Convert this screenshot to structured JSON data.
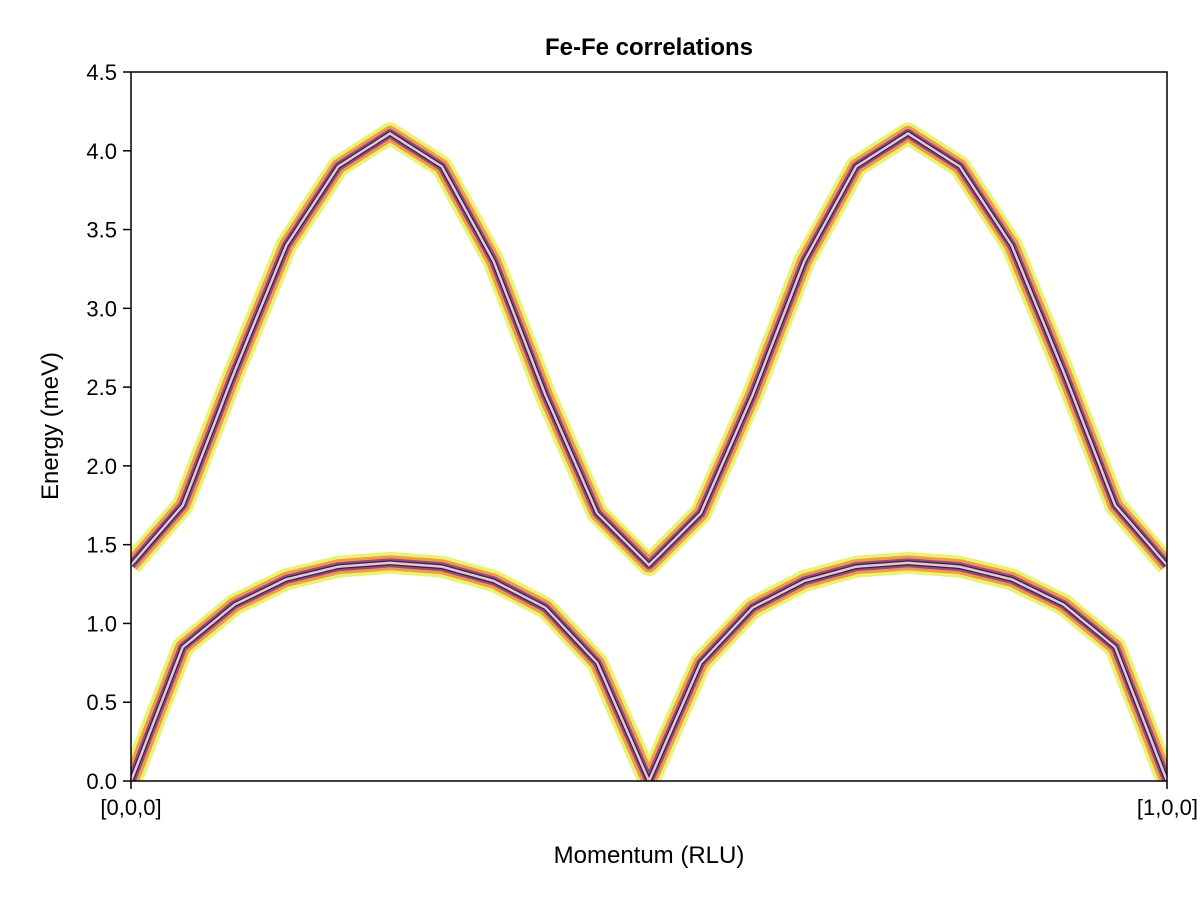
{
  "chart_data": {
    "type": "heatmap",
    "title": "Fe-Fe correlations",
    "xlabel": "Momentum (RLU)",
    "ylabel": "Energy (meV)",
    "xlim": [
      0,
      1
    ],
    "ylim": [
      0,
      4.5
    ],
    "x_ticks": [
      {
        "value": 0,
        "label": "[0,0,0]"
      },
      {
        "value": 1,
        "label": "[1,0,0]"
      }
    ],
    "y_ticks": [
      {
        "value": 0.0,
        "label": "0.0"
      },
      {
        "value": 0.5,
        "label": "0.5"
      },
      {
        "value": 1.0,
        "label": "1.0"
      },
      {
        "value": 1.5,
        "label": "1.5"
      },
      {
        "value": 2.0,
        "label": "2.0"
      },
      {
        "value": 2.5,
        "label": "2.5"
      },
      {
        "value": 3.0,
        "label": "3.0"
      },
      {
        "value": 3.5,
        "label": "3.5"
      },
      {
        "value": 4.0,
        "label": "4.0"
      },
      {
        "value": 4.5,
        "label": "4.5"
      }
    ],
    "grid": false,
    "colors": {
      "line": "#f7bdd0",
      "intensity_high": "#0d2a3a",
      "intensity_mid": "#8a3a8f",
      "intensity_low": "#f28c3c",
      "intensity_edge": "#e6f05a"
    },
    "series": [
      {
        "x": [
          0.0,
          0.05,
          0.1,
          0.15,
          0.2,
          0.25,
          0.3,
          0.35,
          0.4,
          0.45,
          0.5,
          0.55,
          0.6,
          0.65,
          0.7,
          0.75,
          0.8,
          0.85,
          0.9,
          0.95,
          1.0
        ],
        "y": [
          1.37,
          1.75,
          2.6,
          3.4,
          3.9,
          4.11,
          3.9,
          3.3,
          2.45,
          1.7,
          1.37,
          1.7,
          2.45,
          3.3,
          3.9,
          4.11,
          3.9,
          3.4,
          2.6,
          1.75,
          1.37
        ]
      },
      {
        "x": [
          0.0,
          0.05,
          0.1,
          0.15,
          0.2,
          0.25,
          0.3,
          0.35,
          0.4,
          0.45,
          0.5,
          0.55,
          0.6,
          0.65,
          0.7,
          0.75,
          0.8,
          0.85,
          0.9,
          0.95,
          1.0
        ],
        "y": [
          0.0,
          0.85,
          1.12,
          1.28,
          1.36,
          1.385,
          1.36,
          1.27,
          1.1,
          0.75,
          0.0,
          0.75,
          1.1,
          1.27,
          1.36,
          1.385,
          1.36,
          1.28,
          1.12,
          0.85,
          0.0
        ]
      }
    ]
  }
}
